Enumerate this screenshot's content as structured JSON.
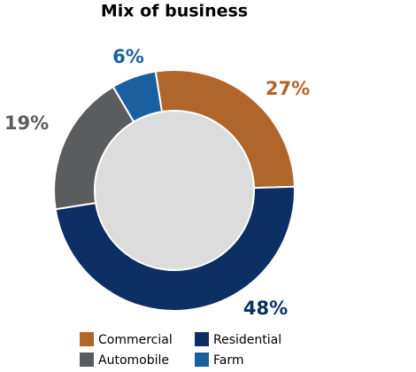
{
  "chart_data": {
    "type": "donut",
    "title": "Mix of business",
    "categories": [
      "Commercial",
      "Residential",
      "Automobile",
      "Farm"
    ],
    "values": [
      27,
      48,
      19,
      6
    ],
    "value_labels": [
      "27%",
      "48%",
      "19%",
      "6%"
    ],
    "colors": [
      "#b0652a",
      "#0d2f63",
      "#5a5c5e",
      "#1a5fa0"
    ],
    "legend": "bottom"
  }
}
